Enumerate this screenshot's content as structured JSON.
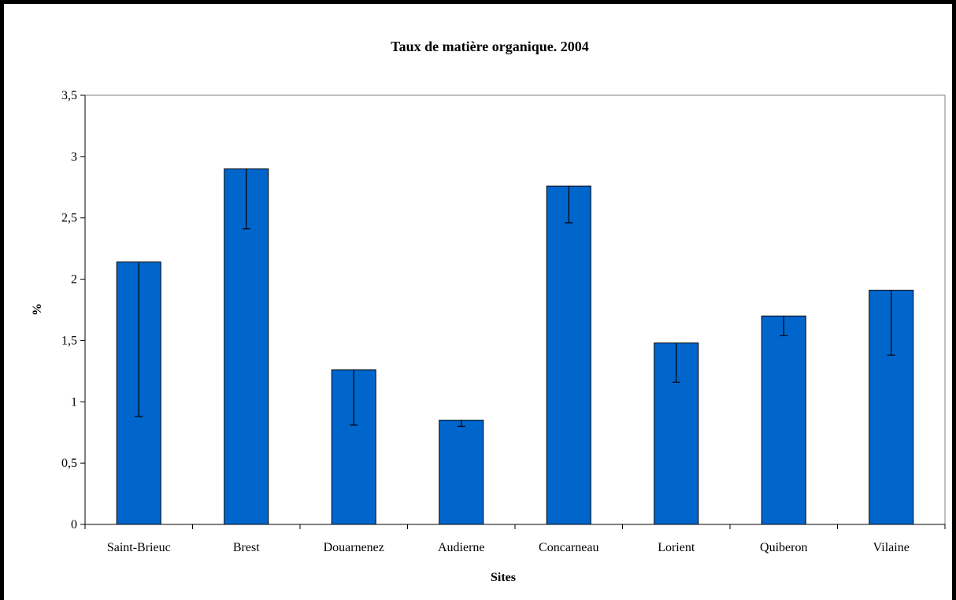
{
  "chart_data": {
    "type": "bar",
    "title": "Taux de matière organique. 2004",
    "xlabel": "Sites",
    "ylabel": "%",
    "categories": [
      "Saint-Brieuc",
      "Brest",
      "Douarnenez",
      "Audierne",
      "Concarneau",
      "Lorient",
      "Quiberon",
      "Vilaine"
    ],
    "values": [
      2.14,
      2.9,
      1.26,
      0.85,
      2.76,
      1.48,
      1.7,
      1.91
    ],
    "error_lower": [
      0.88,
      2.41,
      0.81,
      0.8,
      2.46,
      1.16,
      1.54,
      1.38
    ],
    "ylim": [
      0,
      3.5
    ],
    "yticks": [
      0,
      0.5,
      1,
      1.5,
      2,
      2.5,
      3,
      3.5
    ],
    "ytick_labels": [
      "0",
      "0,5",
      "1",
      "1,5",
      "2",
      "2,5",
      "3",
      "3,5"
    ],
    "grid": false,
    "legend": "none",
    "bar_color": "#0066CC"
  }
}
